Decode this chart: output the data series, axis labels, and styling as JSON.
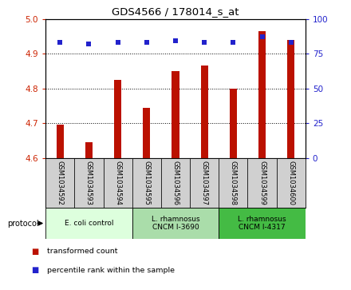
{
  "title": "GDS4566 / 178014_s_at",
  "samples": [
    "GSM1034592",
    "GSM1034593",
    "GSM1034594",
    "GSM1034595",
    "GSM1034596",
    "GSM1034597",
    "GSM1034598",
    "GSM1034599",
    "GSM1034600"
  ],
  "bar_values": [
    4.695,
    4.645,
    4.825,
    4.745,
    4.85,
    4.865,
    4.8,
    4.965,
    4.94
  ],
  "dot_values": [
    83,
    82,
    83,
    83,
    84,
    83,
    83,
    87,
    83
  ],
  "ylim_left": [
    4.6,
    5.0
  ],
  "ylim_right": [
    0,
    100
  ],
  "yticks_left": [
    4.6,
    4.7,
    4.8,
    4.9,
    5.0
  ],
  "yticks_right": [
    0,
    25,
    50,
    75,
    100
  ],
  "bar_color": "#bb1100",
  "dot_color": "#2222cc",
  "protocol_groups": [
    {
      "label": "E. coli control",
      "start": 0,
      "end": 3,
      "color": "#ddffdd"
    },
    {
      "label": "L. rhamnosus\nCNCM I-3690",
      "start": 3,
      "end": 6,
      "color": "#aaddaa"
    },
    {
      "label": "L. rhamnosus\nCNCM I-4317",
      "start": 6,
      "end": 9,
      "color": "#44bb44"
    }
  ],
  "legend_items": [
    {
      "label": "transformed count",
      "color": "#bb1100"
    },
    {
      "label": "percentile rank within the sample",
      "color": "#2222cc"
    }
  ],
  "protocol_label": "protocol",
  "tick_color_left": "#cc2200",
  "tick_color_right": "#2222cc",
  "sample_box_color": "#d0d0d0",
  "bar_width": 0.25
}
